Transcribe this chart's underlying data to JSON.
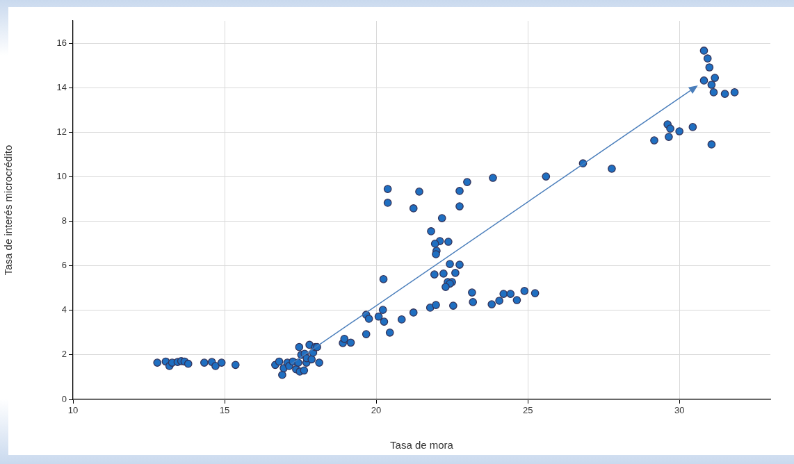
{
  "chart_data": {
    "type": "scatter",
    "xlabel": "Tasa de mora",
    "ylabel": "Tasa de interés microcrédito",
    "xlim": [
      10,
      33
    ],
    "xticks": [
      10,
      15,
      20,
      25,
      30
    ],
    "ylim": [
      0,
      17
    ],
    "yticks": [
      0,
      2,
      4,
      6,
      8,
      10,
      12,
      14,
      16
    ],
    "grid": true,
    "legend": false,
    "marker": "circle",
    "series": [
      {
        "color": "#1f6fc1",
        "x": [
          12.78,
          13.06,
          13.18,
          13.27,
          13.45,
          13.57,
          13.68,
          13.8,
          14.33,
          14.58,
          14.7,
          14.9,
          15.36,
          16.67,
          16.8,
          16.9,
          16.95,
          17.07,
          17.13,
          17.25,
          17.36,
          17.43,
          17.48,
          17.46,
          17.53,
          17.64,
          17.7,
          17.71,
          17.8,
          17.87,
          17.92,
          17.99,
          18.05,
          18.12,
          17.62,
          18.9,
          18.95,
          19.16,
          19.67,
          19.67,
          19.76,
          20.08,
          20.22,
          20.26,
          20.45,
          20.24,
          20.84,
          21.23,
          21.78,
          20.38,
          20.38,
          21.42,
          21.23,
          22.75,
          23.0,
          22.75,
          23.85,
          22.17,
          21.81,
          22.1,
          22.38,
          21.94,
          21.99,
          21.97,
          22.43,
          22.75,
          21.92,
          22.22,
          22.61,
          22.36,
          22.5,
          22.43,
          22.29,
          23.16,
          23.19,
          21.97,
          22.54,
          23.81,
          24.06,
          24.2,
          24.43,
          24.64,
          24.89,
          25.24,
          25.6,
          26.82,
          27.77,
          29.17,
          30.81,
          30.93,
          30.99,
          30.81,
          31.17,
          31.06,
          31.13,
          31.5,
          31.82,
          29.61,
          29.7,
          29.65,
          30.0,
          30.44,
          31.06
        ],
        "values": [
          1.65,
          1.7,
          1.5,
          1.65,
          1.68,
          1.72,
          1.7,
          1.6,
          1.65,
          1.68,
          1.5,
          1.65,
          1.55,
          1.55,
          1.7,
          1.1,
          1.4,
          1.65,
          1.5,
          1.7,
          1.35,
          1.65,
          1.25,
          2.35,
          2.0,
          2.05,
          1.65,
          1.85,
          2.45,
          1.8,
          2.1,
          2.35,
          2.35,
          1.65,
          1.3,
          2.53,
          2.72,
          2.55,
          2.93,
          3.8,
          3.62,
          3.72,
          4.02,
          3.49,
          3.0,
          5.4,
          3.59,
          3.9,
          4.12,
          9.45,
          8.83,
          9.33,
          8.58,
          9.36,
          9.76,
          8.67,
          9.95,
          8.14,
          7.55,
          7.11,
          7.08,
          6.99,
          6.67,
          6.52,
          6.08,
          6.05,
          5.61,
          5.65,
          5.68,
          5.27,
          5.27,
          5.2,
          5.05,
          4.8,
          4.37,
          4.24,
          4.21,
          4.27,
          4.43,
          4.74,
          4.74,
          4.46,
          4.87,
          4.77,
          10.01,
          10.6,
          10.36,
          11.63,
          15.66,
          15.31,
          14.91,
          14.32,
          14.44,
          14.13,
          13.79,
          13.72,
          13.79,
          12.35,
          12.16,
          11.79,
          12.04,
          12.23,
          11.45
        ]
      }
    ]
  }
}
